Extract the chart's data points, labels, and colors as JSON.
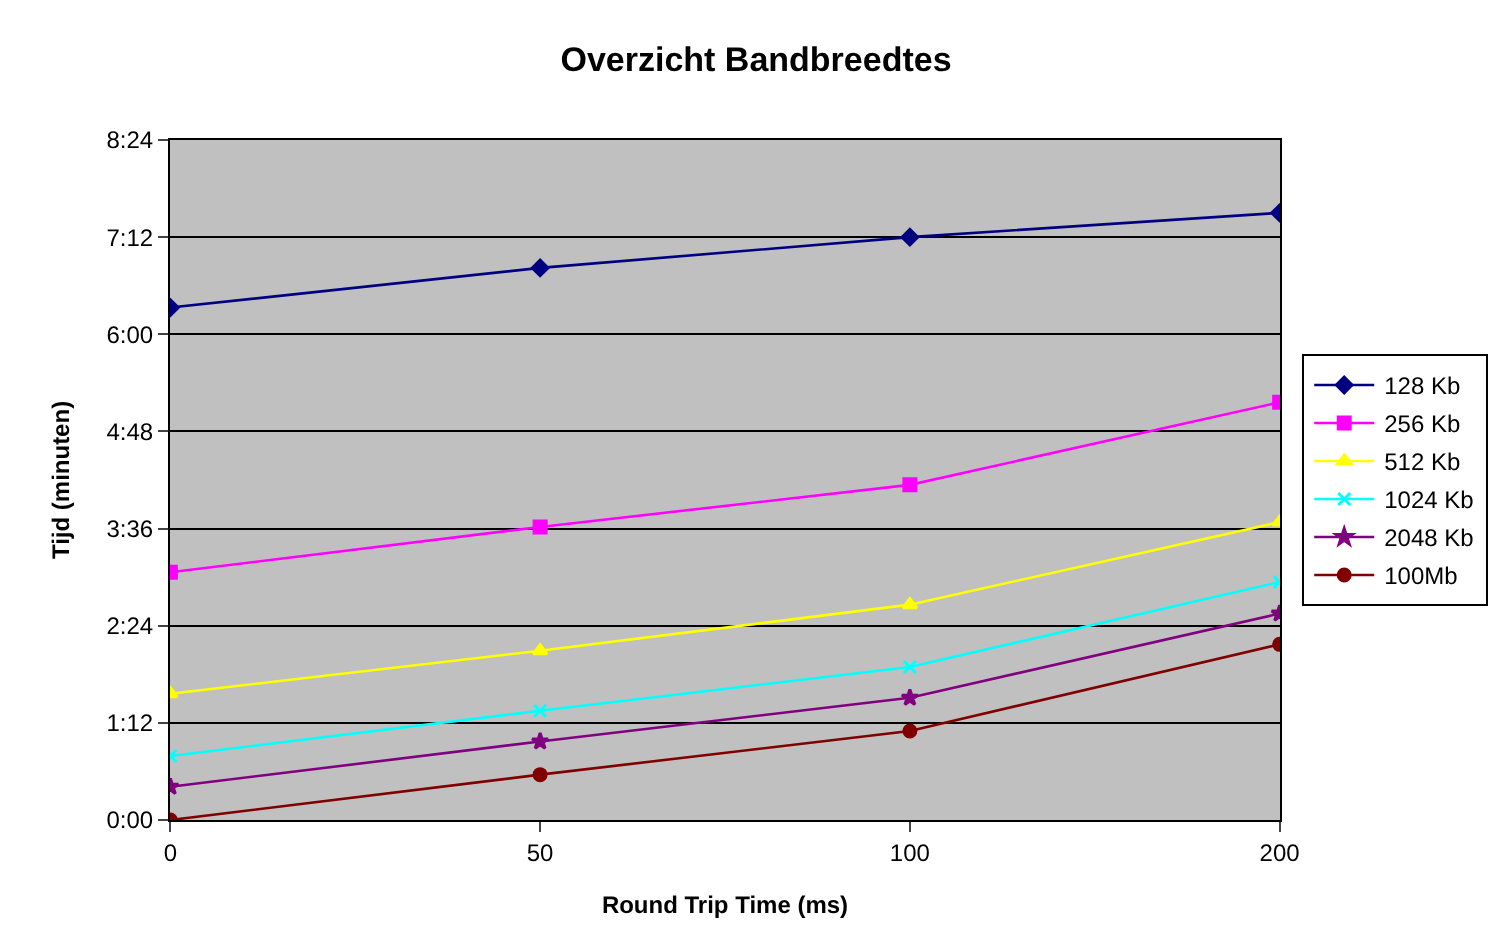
{
  "chart_data": {
    "type": "line",
    "title": "Overzicht Bandbreedtes",
    "xlabel": "Round Trip Time (ms)",
    "ylabel": "Tijd (minuten)",
    "categories": [
      "0",
      "50",
      "100",
      "200"
    ],
    "ylim": [
      0,
      8.4
    ],
    "yticks": [
      {
        "value": 0,
        "label": "0:00"
      },
      {
        "value": 1.2,
        "label": "1:12"
      },
      {
        "value": 2.4,
        "label": "2:24"
      },
      {
        "value": 3.6,
        "label": "3:36"
      },
      {
        "value": 4.8,
        "label": "4:48"
      },
      {
        "value": 6,
        "label": "6:00"
      },
      {
        "value": 7.2,
        "label": "7:12"
      },
      {
        "value": 8.4,
        "label": "8:24"
      }
    ],
    "grid": "y",
    "legend": "right",
    "series": [
      {
        "name": "128 Kb",
        "color": "#000080",
        "marker": "diamond",
        "values": [
          6.33,
          6.82,
          7.2,
          7.5
        ]
      },
      {
        "name": "256 Kb",
        "color": "#ff00ff",
        "marker": "square",
        "values": [
          3.06,
          3.62,
          4.14,
          5.16
        ]
      },
      {
        "name": "512 Kb",
        "color": "#ffff00",
        "marker": "triangle",
        "values": [
          1.56,
          2.09,
          2.66,
          3.68
        ]
      },
      {
        "name": "1024 Kb",
        "color": "#00ffff",
        "marker": "cross",
        "values": [
          0.79,
          1.35,
          1.89,
          2.94
        ]
      },
      {
        "name": "2048 Kb",
        "color": "#800080",
        "marker": "star",
        "values": [
          0.41,
          0.97,
          1.51,
          2.55
        ]
      },
      {
        "name": "100Mb",
        "color": "#800000",
        "marker": "circle",
        "values": [
          0,
          0.56,
          1.1,
          2.17
        ]
      }
    ]
  }
}
